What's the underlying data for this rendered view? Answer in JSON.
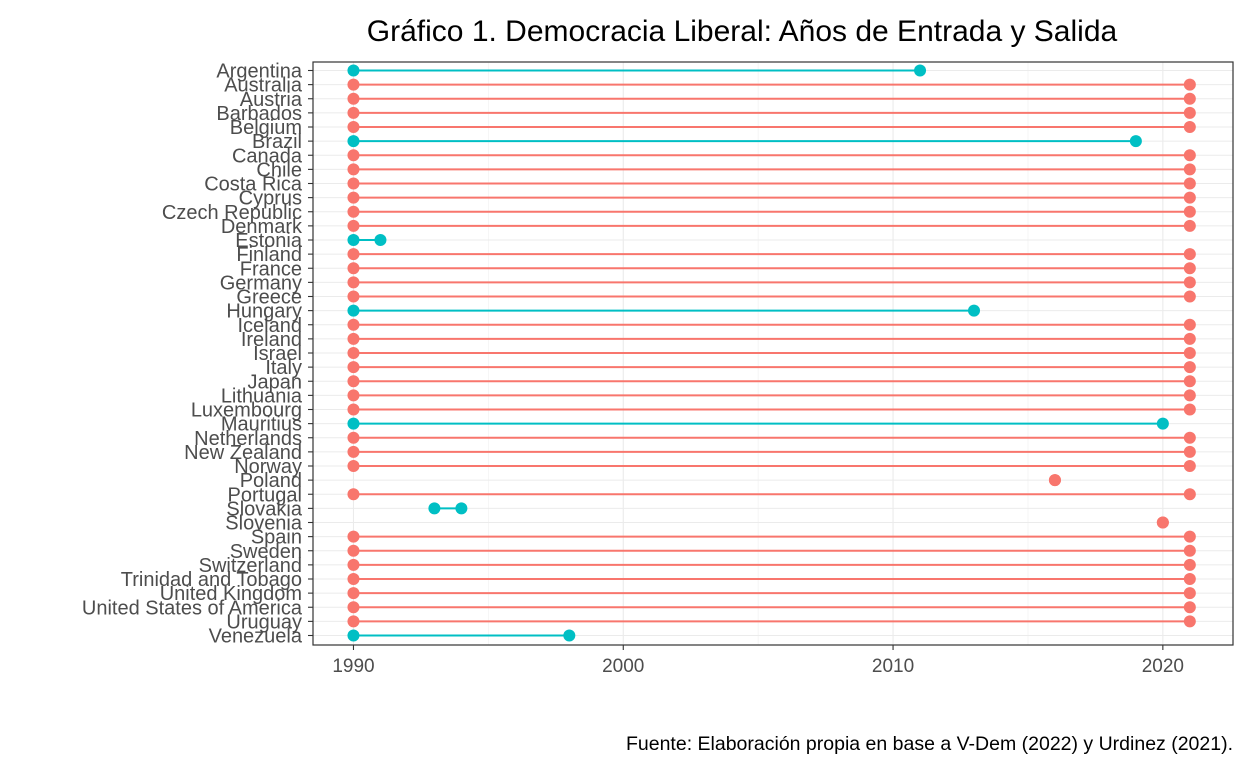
{
  "chart_data": {
    "type": "dumbbell",
    "title": "Gráfico 1. Democracia Liberal: Años de Entrada y Salida",
    "caption": "Fuente: Elaboración propia en base a V-Dem (2022) y Urdinez (2021).",
    "xlabel": "",
    "ylabel": "",
    "xlim": [
      1988.5,
      2022.6
    ],
    "x_ticks": [
      1990,
      2000,
      2010,
      2020
    ],
    "grid": true,
    "legend": "none",
    "colors": {
      "continuing": "#F8766D",
      "exited": "#00BFC4"
    },
    "categories": [
      "Argentina",
      "Australia",
      "Austria",
      "Barbados",
      "Belgium",
      "Brazil",
      "Canada",
      "Chile",
      "Costa Rica",
      "Cyprus",
      "Czech Republic",
      "Denmark",
      "Estonia",
      "Finland",
      "France",
      "Germany",
      "Greece",
      "Hungary",
      "Iceland",
      "Ireland",
      "Israel",
      "Italy",
      "Japan",
      "Lithuania",
      "Luxembourg",
      "Mauritius",
      "Netherlands",
      "New Zealand",
      "Norway",
      "Poland",
      "Portugal",
      "Slovakia",
      "Slovenia",
      "Spain",
      "Sweden",
      "Switzerland",
      "Trinidad and Tobago",
      "United Kingdom",
      "United States of America",
      "Uruguay",
      "Venezuela"
    ],
    "series": [
      {
        "name": "",
        "category": "Argentina",
        "start": 1990,
        "end": 2011,
        "group": "exited"
      },
      {
        "name": "",
        "category": "Australia",
        "start": 1990,
        "end": 2021,
        "group": "continuing"
      },
      {
        "name": "",
        "category": "Austria",
        "start": 1990,
        "end": 2021,
        "group": "continuing"
      },
      {
        "name": "",
        "category": "Barbados",
        "start": 1990,
        "end": 2021,
        "group": "continuing"
      },
      {
        "name": "",
        "category": "Belgium",
        "start": 1990,
        "end": 2021,
        "group": "continuing"
      },
      {
        "name": "",
        "category": "Brazil",
        "start": 1990,
        "end": 2019,
        "group": "exited"
      },
      {
        "name": "",
        "category": "Canada",
        "start": 1990,
        "end": 2021,
        "group": "continuing"
      },
      {
        "name": "",
        "category": "Chile",
        "start": 1990,
        "end": 2021,
        "group": "continuing"
      },
      {
        "name": "",
        "category": "Costa Rica",
        "start": 1990,
        "end": 2021,
        "group": "continuing"
      },
      {
        "name": "",
        "category": "Cyprus",
        "start": 1990,
        "end": 2021,
        "group": "continuing"
      },
      {
        "name": "",
        "category": "Czech Republic",
        "start": 1990,
        "end": 2021,
        "group": "continuing"
      },
      {
        "name": "",
        "category": "Denmark",
        "start": 1990,
        "end": 2021,
        "group": "continuing"
      },
      {
        "name": "",
        "category": "Estonia",
        "start": 1990,
        "end": 1991,
        "group": "exited"
      },
      {
        "name": "",
        "category": "Finland",
        "start": 1990,
        "end": 2021,
        "group": "continuing"
      },
      {
        "name": "",
        "category": "France",
        "start": 1990,
        "end": 2021,
        "group": "continuing"
      },
      {
        "name": "",
        "category": "Germany",
        "start": 1990,
        "end": 2021,
        "group": "continuing"
      },
      {
        "name": "",
        "category": "Greece",
        "start": 1990,
        "end": 2021,
        "group": "continuing"
      },
      {
        "name": "",
        "category": "Hungary",
        "start": 1990,
        "end": 2013,
        "group": "exited"
      },
      {
        "name": "",
        "category": "Iceland",
        "start": 1990,
        "end": 2021,
        "group": "continuing"
      },
      {
        "name": "",
        "category": "Ireland",
        "start": 1990,
        "end": 2021,
        "group": "continuing"
      },
      {
        "name": "",
        "category": "Israel",
        "start": 1990,
        "end": 2021,
        "group": "continuing"
      },
      {
        "name": "",
        "category": "Italy",
        "start": 1990,
        "end": 2021,
        "group": "continuing"
      },
      {
        "name": "",
        "category": "Japan",
        "start": 1990,
        "end": 2021,
        "group": "continuing"
      },
      {
        "name": "",
        "category": "Lithuania",
        "start": 1990,
        "end": 2021,
        "group": "continuing"
      },
      {
        "name": "",
        "category": "Luxembourg",
        "start": 1990,
        "end": 2021,
        "group": "continuing"
      },
      {
        "name": "",
        "category": "Mauritius",
        "start": 1990,
        "end": 2020,
        "group": "exited"
      },
      {
        "name": "",
        "category": "Netherlands",
        "start": 1990,
        "end": 2021,
        "group": "continuing"
      },
      {
        "name": "",
        "category": "New Zealand",
        "start": 1990,
        "end": 2021,
        "group": "continuing"
      },
      {
        "name": "",
        "category": "Norway",
        "start": 1990,
        "end": 2021,
        "group": "continuing"
      },
      {
        "name": "",
        "category": "Poland",
        "start": 2016,
        "end": 2016,
        "group": "continuing"
      },
      {
        "name": "",
        "category": "Portugal",
        "start": 1990,
        "end": 2021,
        "group": "continuing"
      },
      {
        "name": "",
        "category": "Slovakia",
        "start": 1993,
        "end": 1994,
        "group": "exited"
      },
      {
        "name": "",
        "category": "Slovenia",
        "start": 2020,
        "end": 2020,
        "group": "continuing"
      },
      {
        "name": "",
        "category": "Spain",
        "start": 1990,
        "end": 2021,
        "group": "continuing"
      },
      {
        "name": "",
        "category": "Sweden",
        "start": 1990,
        "end": 2021,
        "group": "continuing"
      },
      {
        "name": "",
        "category": "Switzerland",
        "start": 1990,
        "end": 2021,
        "group": "continuing"
      },
      {
        "name": "",
        "category": "Trinidad and Tobago",
        "start": 1990,
        "end": 2021,
        "group": "continuing"
      },
      {
        "name": "",
        "category": "United Kingdom",
        "start": 1990,
        "end": 2021,
        "group": "continuing"
      },
      {
        "name": "",
        "category": "United States of America",
        "start": 1990,
        "end": 2021,
        "group": "continuing"
      },
      {
        "name": "",
        "category": "Uruguay",
        "start": 1990,
        "end": 2021,
        "group": "continuing"
      },
      {
        "name": "",
        "category": "Venezuela",
        "start": 1990,
        "end": 1998,
        "group": "exited"
      }
    ]
  }
}
